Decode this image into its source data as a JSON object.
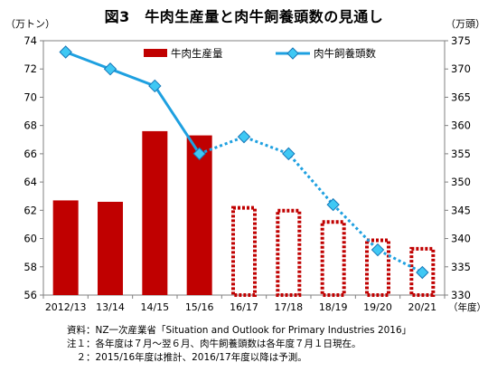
{
  "chart_data": {
    "type": "bar+line",
    "title": "図3　牛肉生産量と肉牛飼養頭数の見通し",
    "categories": [
      "2012/13",
      "13/14",
      "14/15",
      "15/16",
      "16/17",
      "17/18",
      "18/19",
      "19/20",
      "20/21"
    ],
    "left_axis": {
      "unit": "（万トン）",
      "range": [
        56,
        74
      ],
      "ticks": [
        "56",
        "58",
        "60",
        "62",
        "64",
        "66",
        "68",
        "70",
        "72",
        "74"
      ]
    },
    "right_axis": {
      "unit": "（万頭）",
      "range": [
        330,
        375
      ],
      "ticks": [
        "330",
        "335",
        "340",
        "345",
        "350",
        "355",
        "360",
        "365",
        "370",
        "375"
      ]
    },
    "x_unit": "（年度）",
    "series": [
      {
        "name": "牛肉生産量",
        "kind": "bar",
        "axis": "left",
        "values": [
          62.7,
          62.6,
          67.6,
          67.3,
          62.3,
          62.1,
          61.3,
          60.0,
          59.4
        ],
        "projected_from_index": 4,
        "color": "#c00000"
      },
      {
        "name": "肉牛飼養頭数",
        "kind": "line",
        "axis": "right",
        "values": [
          373,
          370,
          367,
          355,
          358,
          355,
          346,
          338,
          334
        ],
        "projected_from_index": 3,
        "color": "#1ea0e0"
      }
    ],
    "legend_placement": "top",
    "grid": false
  },
  "notes": [
    "資料：NZ一次産業省「Situation and Outlook for Primary Industries 2016」",
    "注１：各年度は７月～翌６月、肉牛飼養頭数は各年度７月１日現在。",
    "　２：2015/16年度は推計、2016/17年度以降は予測。"
  ]
}
